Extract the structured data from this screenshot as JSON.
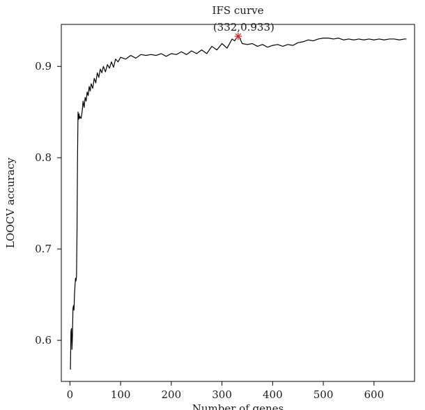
{
  "chart_data": {
    "type": "line",
    "title": "IFS curve",
    "xlabel": "Number of genes",
    "ylabel": "LOOCV accuracy",
    "xlim": [
      -17,
      680
    ],
    "ylim": [
      0.555,
      0.946
    ],
    "x_ticks": [
      0,
      100,
      200,
      300,
      400,
      500,
      600
    ],
    "y_ticks": [
      0.6,
      0.7,
      0.8,
      0.9
    ],
    "x_tick_labels": [
      "0",
      "100",
      "200",
      "300",
      "400",
      "500",
      "600"
    ],
    "y_tick_labels": [
      "0.6",
      "0.7",
      "0.8",
      "0.9"
    ],
    "grid": false,
    "line_color": "#000000",
    "series": [
      {
        "x": [
          1,
          2,
          3,
          4,
          5,
          6,
          7,
          8,
          9,
          10,
          11,
          12,
          13,
          14,
          15,
          16,
          17,
          18,
          19,
          20,
          22,
          24,
          26,
          28,
          30,
          32,
          34,
          36,
          38,
          40,
          42,
          45,
          48,
          51,
          54,
          57,
          60,
          63,
          66,
          70,
          74,
          78,
          82,
          86,
          90,
          95,
          100,
          110,
          120,
          130,
          140,
          150,
          160,
          170,
          180,
          190,
          200,
          210,
          220,
          230,
          240,
          250,
          260,
          270,
          280,
          290,
          300,
          310,
          320,
          325,
          330,
          332,
          335,
          340,
          350,
          360,
          370,
          380,
          390,
          400,
          410,
          420,
          430,
          440,
          450,
          460,
          470,
          480,
          490,
          500,
          510,
          520,
          530,
          540,
          550,
          560,
          570,
          580,
          590,
          600,
          610,
          620,
          630,
          640,
          650,
          660,
          664
        ],
        "y": [
          0.568,
          0.61,
          0.613,
          0.59,
          0.605,
          0.635,
          0.638,
          0.633,
          0.65,
          0.66,
          0.668,
          0.665,
          0.67,
          0.72,
          0.8,
          0.85,
          0.842,
          0.848,
          0.843,
          0.845,
          0.843,
          0.85,
          0.862,
          0.855,
          0.866,
          0.862,
          0.872,
          0.868,
          0.878,
          0.873,
          0.881,
          0.876,
          0.887,
          0.882,
          0.893,
          0.888,
          0.897,
          0.893,
          0.9,
          0.894,
          0.902,
          0.898,
          0.905,
          0.899,
          0.908,
          0.905,
          0.91,
          0.908,
          0.912,
          0.909,
          0.913,
          0.912,
          0.913,
          0.912,
          0.914,
          0.911,
          0.914,
          0.913,
          0.916,
          0.913,
          0.917,
          0.914,
          0.918,
          0.914,
          0.922,
          0.918,
          0.925,
          0.92,
          0.93,
          0.928,
          0.932,
          0.933,
          0.931,
          0.925,
          0.924,
          0.925,
          0.922,
          0.924,
          0.921,
          0.923,
          0.924,
          0.922,
          0.924,
          0.923,
          0.926,
          0.927,
          0.929,
          0.928,
          0.93,
          0.931,
          0.931,
          0.93,
          0.931,
          0.929,
          0.93,
          0.929,
          0.93,
          0.929,
          0.93,
          0.929,
          0.93,
          0.929,
          0.93,
          0.93,
          0.929,
          0.93,
          0.93
        ]
      }
    ],
    "highlight": {
      "x": 332,
      "y": 0.933,
      "label": "(332,0.933)",
      "color": "#d62728"
    }
  }
}
